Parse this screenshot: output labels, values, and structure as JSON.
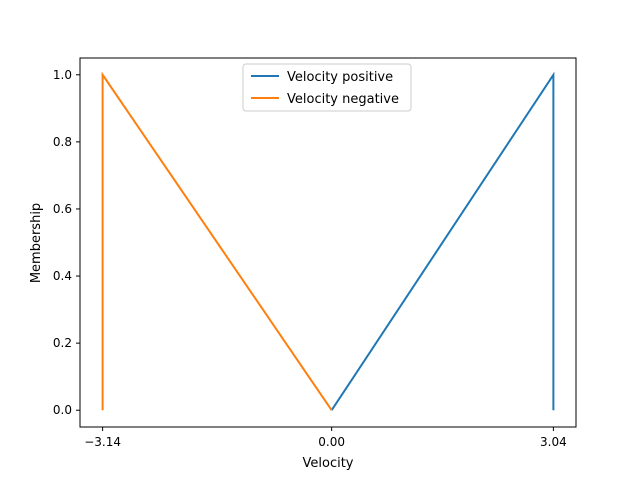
{
  "chart_data": {
    "type": "line",
    "xlabel": "Velocity",
    "ylabel": "Membership",
    "xlim": [
      -3.45,
      3.35
    ],
    "ylim": [
      -0.05,
      1.05
    ],
    "xticks": [
      {
        "value": -3.14,
        "label": "−3.14"
      },
      {
        "value": 0.0,
        "label": "0.00"
      },
      {
        "value": 3.04,
        "label": "3.04"
      }
    ],
    "yticks": [
      {
        "value": 0.0,
        "label": "0.0"
      },
      {
        "value": 0.2,
        "label": "0.2"
      },
      {
        "value": 0.4,
        "label": "0.4"
      },
      {
        "value": 0.6,
        "label": "0.6"
      },
      {
        "value": 0.8,
        "label": "0.8"
      },
      {
        "value": 1.0,
        "label": "1.0"
      }
    ],
    "grid": false,
    "legend_position": "top-center",
    "series": [
      {
        "name": "Velocity positive",
        "color": "#1f77b4",
        "x": [
          0.0,
          3.04,
          3.04
        ],
        "y": [
          0.0,
          1.0,
          0.0
        ]
      },
      {
        "name": "Velocity negative",
        "color": "#ff7f0e",
        "x": [
          -3.14,
          -3.14,
          0.0
        ],
        "y": [
          0.0,
          1.0,
          0.0
        ]
      }
    ]
  }
}
